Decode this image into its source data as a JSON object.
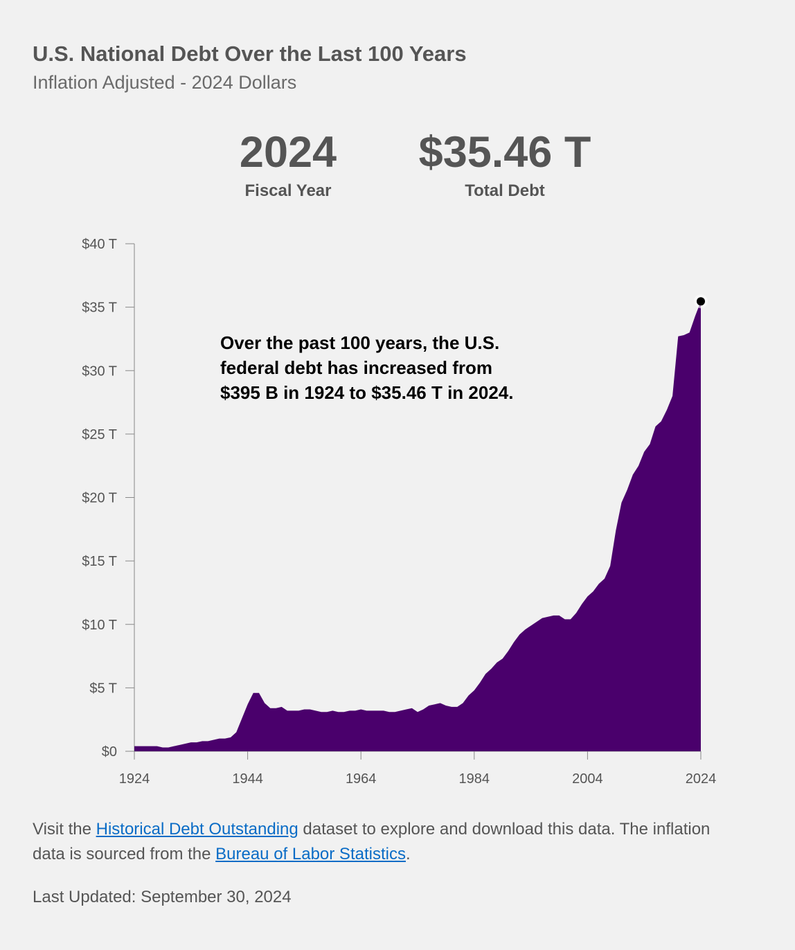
{
  "header": {
    "title": "U.S. National Debt Over the Last 100 Years",
    "subtitle": "Inflation Adjusted - 2024 Dollars"
  },
  "stats": {
    "year_value": "2024",
    "year_label": "Fiscal Year",
    "debt_value": "$35.46 T",
    "debt_label": "Total Debt"
  },
  "annotation": {
    "lines": [
      "Over the past 100 years, the U.S.",
      "federal debt has increased from",
      "$395 B in 1924 to $35.46 T in 2024."
    ]
  },
  "footer": {
    "text_1": "Visit the ",
    "link_1": "Historical Debt Outstanding",
    "text_2": " dataset to explore and download this data. The inflation data is sourced from the ",
    "link_2": "Bureau of Labor Statistics",
    "text_3": ".",
    "updated": "Last Updated: September 30, 2024"
  },
  "colors": {
    "area": "#4a006c",
    "highlight_point": "#000000",
    "link": "#0a6cc6"
  },
  "chart_data": {
    "type": "area",
    "title": "U.S. National Debt Over the Last 100 Years",
    "subtitle": "Inflation Adjusted - 2024 Dollars",
    "xlabel": "",
    "ylabel": "",
    "xlim": [
      1924,
      2024
    ],
    "ylim": [
      0,
      40
    ],
    "y_unit": "T",
    "x_ticks": [
      1924,
      1944,
      1964,
      1984,
      2004,
      2024
    ],
    "y_ticks": [
      {
        "value": 0,
        "label": "$0"
      },
      {
        "value": 5,
        "label": "$5 T"
      },
      {
        "value": 10,
        "label": "$10 T"
      },
      {
        "value": 15,
        "label": "$15 T"
      },
      {
        "value": 20,
        "label": "$20 T"
      },
      {
        "value": 25,
        "label": "$25 T"
      },
      {
        "value": 30,
        "label": "$30 T"
      },
      {
        "value": 35,
        "label": "$35 T"
      },
      {
        "value": 40,
        "label": "$40 T"
      }
    ],
    "grid": false,
    "legend": "none",
    "highlight": {
      "x": 2024,
      "y": 35.46
    },
    "x": [
      1924,
      1925,
      1926,
      1927,
      1928,
      1929,
      1930,
      1931,
      1932,
      1933,
      1934,
      1935,
      1936,
      1937,
      1938,
      1939,
      1940,
      1941,
      1942,
      1943,
      1944,
      1945,
      1946,
      1947,
      1948,
      1949,
      1950,
      1951,
      1952,
      1953,
      1954,
      1955,
      1956,
      1957,
      1958,
      1959,
      1960,
      1961,
      1962,
      1963,
      1964,
      1965,
      1966,
      1967,
      1968,
      1969,
      1970,
      1971,
      1972,
      1973,
      1974,
      1975,
      1976,
      1977,
      1978,
      1979,
      1980,
      1981,
      1982,
      1983,
      1984,
      1985,
      1986,
      1987,
      1988,
      1989,
      1990,
      1991,
      1992,
      1993,
      1994,
      1995,
      1996,
      1997,
      1998,
      1999,
      2000,
      2001,
      2002,
      2003,
      2004,
      2005,
      2006,
      2007,
      2008,
      2009,
      2010,
      2011,
      2012,
      2013,
      2014,
      2015,
      2016,
      2017,
      2018,
      2019,
      2020,
      2021,
      2022,
      2023,
      2024
    ],
    "values": [
      0.4,
      0.4,
      0.4,
      0.4,
      0.4,
      0.3,
      0.3,
      0.4,
      0.5,
      0.6,
      0.7,
      0.7,
      0.8,
      0.8,
      0.9,
      1.0,
      1.0,
      1.1,
      1.5,
      2.6,
      3.7,
      4.6,
      4.6,
      3.8,
      3.4,
      3.4,
      3.5,
      3.2,
      3.2,
      3.2,
      3.3,
      3.3,
      3.2,
      3.1,
      3.1,
      3.2,
      3.1,
      3.1,
      3.2,
      3.2,
      3.3,
      3.2,
      3.2,
      3.2,
      3.2,
      3.1,
      3.1,
      3.2,
      3.3,
      3.4,
      3.1,
      3.3,
      3.6,
      3.7,
      3.8,
      3.6,
      3.5,
      3.5,
      3.8,
      4.4,
      4.8,
      5.4,
      6.1,
      6.5,
      7.0,
      7.3,
      7.9,
      8.6,
      9.2,
      9.6,
      9.9,
      10.2,
      10.5,
      10.6,
      10.7,
      10.7,
      10.4,
      10.4,
      10.9,
      11.6,
      12.2,
      12.6,
      13.2,
      13.6,
      14.6,
      17.4,
      19.6,
      20.6,
      21.8,
      22.5,
      23.6,
      24.2,
      25.6,
      26.0,
      26.9,
      28.0,
      32.7,
      32.8,
      33.0,
      34.3,
      35.46
    ]
  }
}
